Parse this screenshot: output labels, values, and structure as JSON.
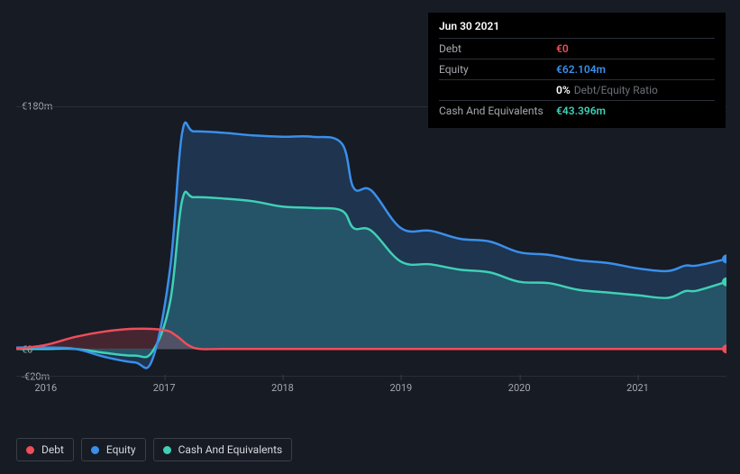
{
  "tooltip": {
    "date": "Jun 30 2021",
    "rows": [
      {
        "label": "Debt",
        "value": "€0",
        "color": "#ef4d5a"
      },
      {
        "label": "Equity",
        "value": "€62.104m",
        "color": "#3a8fea"
      },
      {
        "label": "",
        "value": "0%",
        "color": "#ffffff",
        "extra": "Debt/Equity Ratio"
      },
      {
        "label": "Cash And Equivalents",
        "value": "€43.396m",
        "color": "#3fd0b6"
      }
    ]
  },
  "chart": {
    "type": "area",
    "background_color": "#161b24",
    "grid_color": "#2a2e37",
    "text_color": "#a6a8ad",
    "y_axis": {
      "min": -20,
      "max": 180,
      "ticks": [
        {
          "v": 180,
          "label": "€180m"
        },
        {
          "v": 0,
          "label": "€0"
        },
        {
          "v": -20,
          "label": "-€20m"
        }
      ]
    },
    "x_axis": {
      "min": 2015.75,
      "max": 2021.75,
      "ticks": [
        {
          "v": 2016,
          "label": "2016"
        },
        {
          "v": 2017,
          "label": "2017"
        },
        {
          "v": 2018,
          "label": "2018"
        },
        {
          "v": 2019,
          "label": "2019"
        },
        {
          "v": 2020,
          "label": "2020"
        },
        {
          "v": 2021,
          "label": "2021"
        }
      ]
    },
    "series": [
      {
        "name": "Cash And Equivalents",
        "color": "#3fd0b6",
        "fill": "rgba(63,208,182,0.22)",
        "line_width": 2.5,
        "points": [
          [
            2015.75,
            0
          ],
          [
            2016.0,
            0
          ],
          [
            2016.25,
            0
          ],
          [
            2016.5,
            -3
          ],
          [
            2016.75,
            -5
          ],
          [
            2016.9,
            -2
          ],
          [
            2017.05,
            35
          ],
          [
            2017.15,
            110
          ],
          [
            2017.25,
            113
          ],
          [
            2017.5,
            112
          ],
          [
            2017.75,
            110
          ],
          [
            2018.0,
            106
          ],
          [
            2018.25,
            105
          ],
          [
            2018.5,
            103
          ],
          [
            2018.6,
            90
          ],
          [
            2018.75,
            88
          ],
          [
            2019.0,
            65
          ],
          [
            2019.25,
            63
          ],
          [
            2019.5,
            59
          ],
          [
            2019.75,
            57
          ],
          [
            2020.0,
            50
          ],
          [
            2020.25,
            49
          ],
          [
            2020.5,
            44
          ],
          [
            2020.75,
            42
          ],
          [
            2021.0,
            40
          ],
          [
            2021.25,
            38
          ],
          [
            2021.4,
            43
          ],
          [
            2021.5,
            43.4
          ],
          [
            2021.75,
            50
          ]
        ]
      },
      {
        "name": "Equity",
        "color": "#3a8fea",
        "fill": "rgba(58,143,234,0.22)",
        "line_width": 2.5,
        "points": [
          [
            2015.75,
            1
          ],
          [
            2016.0,
            1
          ],
          [
            2016.25,
            0
          ],
          [
            2016.5,
            -6
          ],
          [
            2016.75,
            -10
          ],
          [
            2016.9,
            -8
          ],
          [
            2017.05,
            60
          ],
          [
            2017.15,
            160
          ],
          [
            2017.25,
            162
          ],
          [
            2017.5,
            161
          ],
          [
            2017.75,
            159
          ],
          [
            2018.0,
            158
          ],
          [
            2018.25,
            158
          ],
          [
            2018.5,
            153
          ],
          [
            2018.6,
            120
          ],
          [
            2018.75,
            118
          ],
          [
            2019.0,
            90
          ],
          [
            2019.25,
            88
          ],
          [
            2019.5,
            82
          ],
          [
            2019.75,
            80
          ],
          [
            2020.0,
            72
          ],
          [
            2020.25,
            70
          ],
          [
            2020.5,
            66
          ],
          [
            2020.75,
            64
          ],
          [
            2021.0,
            60
          ],
          [
            2021.25,
            58
          ],
          [
            2021.4,
            62
          ],
          [
            2021.5,
            62.1
          ],
          [
            2021.75,
            67
          ]
        ]
      },
      {
        "name": "Debt",
        "color": "#ef4d5a",
        "fill": "rgba(239,77,90,0.22)",
        "line_width": 2.5,
        "points": [
          [
            2015.75,
            0
          ],
          [
            2016.0,
            3
          ],
          [
            2016.25,
            9
          ],
          [
            2016.5,
            13
          ],
          [
            2016.75,
            15
          ],
          [
            2017.0,
            14
          ],
          [
            2017.1,
            10
          ],
          [
            2017.2,
            3
          ],
          [
            2017.3,
            0
          ],
          [
            2017.5,
            0
          ],
          [
            2018.0,
            0
          ],
          [
            2018.5,
            0
          ],
          [
            2019.0,
            0
          ],
          [
            2019.5,
            0
          ],
          [
            2020.0,
            0
          ],
          [
            2020.5,
            0
          ],
          [
            2021.0,
            0
          ],
          [
            2021.5,
            0
          ],
          [
            2021.75,
            0
          ]
        ]
      }
    ],
    "end_markers": [
      {
        "color": "#3a8fea",
        "x": 2021.75,
        "y": 67
      },
      {
        "color": "#3fd0b6",
        "x": 2021.75,
        "y": 50
      },
      {
        "color": "#ef4d5a",
        "x": 2021.75,
        "y": 0
      }
    ]
  },
  "legend": [
    {
      "label": "Debt",
      "color": "#ef4d5a"
    },
    {
      "label": "Equity",
      "color": "#3a8fea"
    },
    {
      "label": "Cash And Equivalents",
      "color": "#3fd0b6"
    }
  ]
}
